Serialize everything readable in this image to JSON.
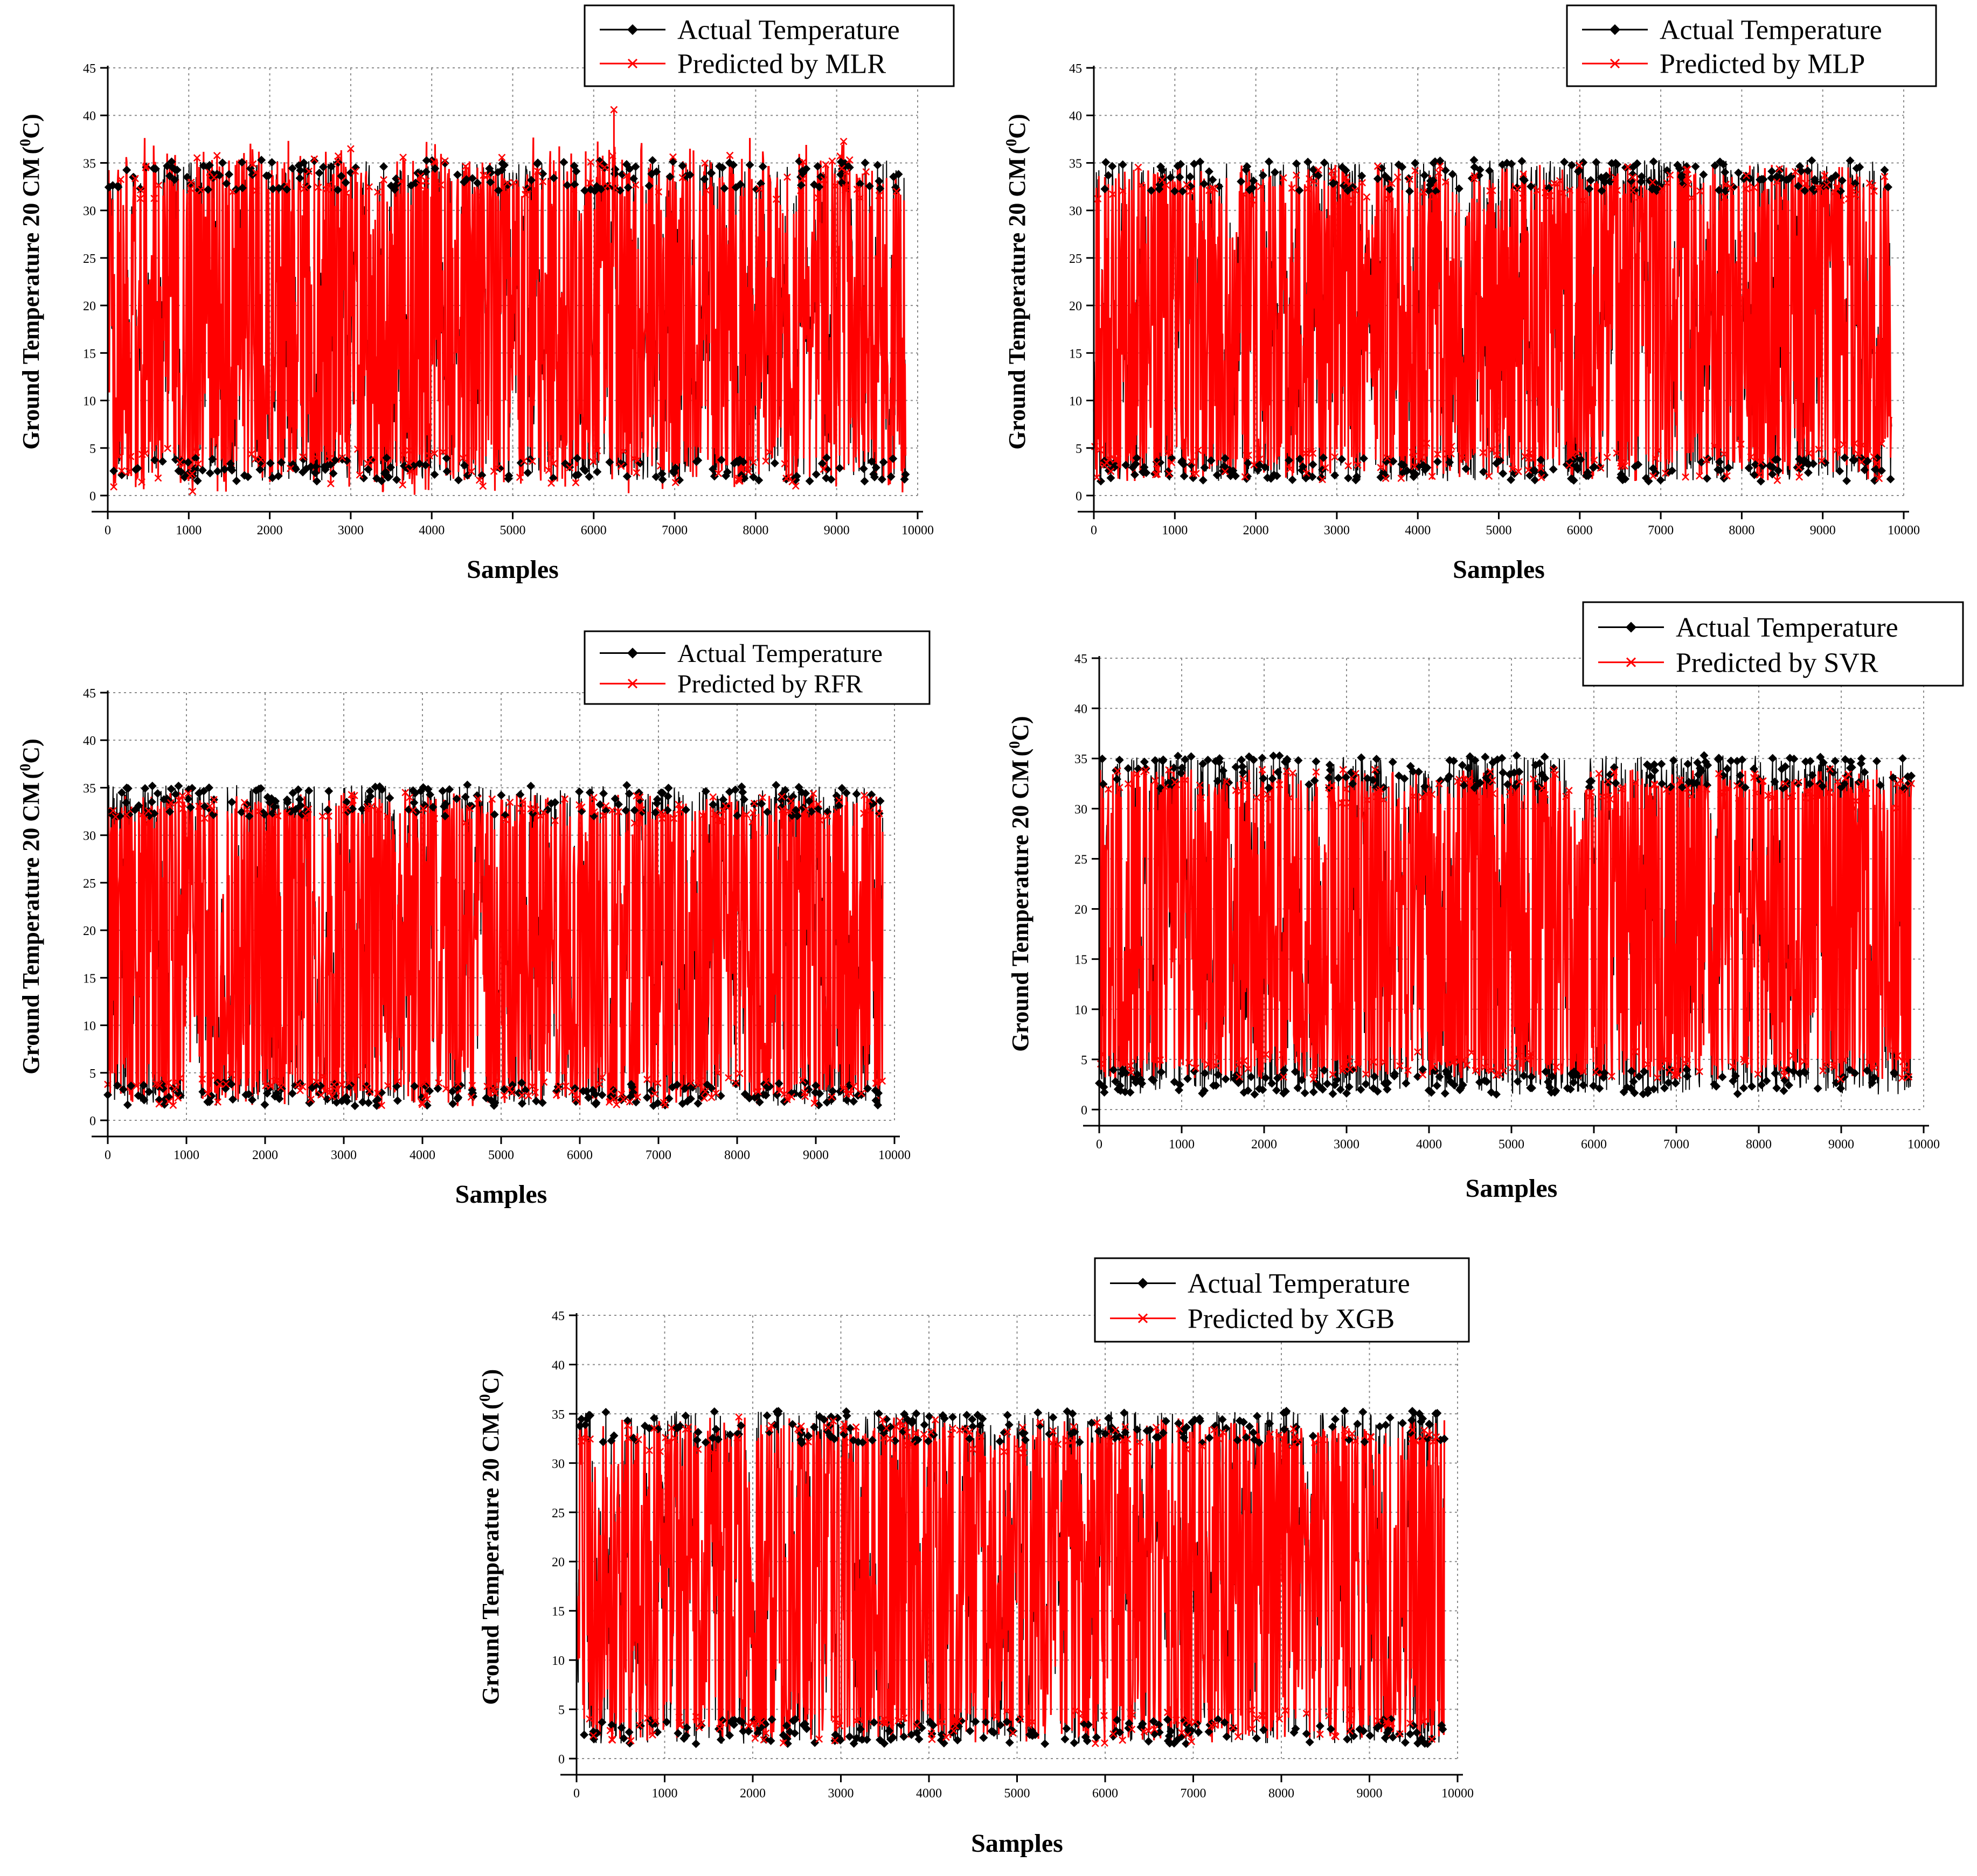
{
  "figure": {
    "common": {
      "xlabel": "Samples",
      "ylabel_main": "Ground Temperature 20 CM",
      "ylabel_paren_open": "(",
      "ylabel_unit_sup": "0",
      "ylabel_unit": "C)",
      "legend_actual": "Actual Temperature",
      "x_ticks": [
        "0",
        "1000",
        "2000",
        "3000",
        "4000",
        "5000",
        "6000",
        "7000",
        "8000",
        "9000",
        "10000"
      ],
      "y_ticks": [
        "0",
        "5",
        "10",
        "15",
        "20",
        "25",
        "30",
        "35",
        "40",
        "45"
      ]
    }
  },
  "chart_data": [
    {
      "type": "line",
      "model": "MLR",
      "legend_predicted": "Predicted by MLR",
      "xlabel": "Samples",
      "ylabel": "Ground Temperature 20 CM (0C)",
      "xlim": [
        0,
        10000
      ],
      "ylim": [
        0,
        45
      ],
      "n_samples": 9850,
      "series": [
        {
          "name": "Actual Temperature",
          "color": "#000000",
          "marker": "diamond",
          "min": 1.5,
          "max": 35.3,
          "typical_low": 4,
          "typical_high": 32
        },
        {
          "name": "Predicted by MLR",
          "color": "#ff0000",
          "marker": "x",
          "min": -0.5,
          "max": 40.6,
          "typical_low": 4,
          "typical_high": 32
        }
      ],
      "annotations": [
        {
          "x": 6250,
          "y": 40.6,
          "series": "Predicted by MLR"
        }
      ]
    },
    {
      "type": "line",
      "model": "MLP",
      "legend_predicted": "Predicted by MLP",
      "xlabel": "Samples",
      "ylabel": "Ground Temperature 20 CM (0C)",
      "xlim": [
        0,
        10000
      ],
      "ylim": [
        0,
        45
      ],
      "n_samples": 9850,
      "series": [
        {
          "name": "Actual Temperature",
          "color": "#000000",
          "marker": "diamond",
          "min": 1.5,
          "max": 35.3,
          "typical_low": 4,
          "typical_high": 32
        },
        {
          "name": "Predicted by MLP",
          "color": "#ff0000",
          "marker": "x",
          "min": 1.5,
          "max": 34.8,
          "typical_low": 4.5,
          "typical_high": 32
        }
      ]
    },
    {
      "type": "line",
      "model": "RFR",
      "legend_predicted": "Predicted by RFR",
      "xlabel": "Samples",
      "ylabel": "Ground Temperature 20 CM (0C)",
      "xlim": [
        0,
        10000
      ],
      "ylim": [
        0,
        45
      ],
      "n_samples": 9850,
      "series": [
        {
          "name": "Actual Temperature",
          "color": "#000000",
          "marker": "diamond",
          "min": 1.5,
          "max": 35.3,
          "typical_low": 4,
          "typical_high": 32
        },
        {
          "name": "Predicted by RFR",
          "color": "#ff0000",
          "marker": "x",
          "min": 1.5,
          "max": 34.5,
          "typical_low": 4,
          "typical_high": 32
        }
      ]
    },
    {
      "type": "line",
      "model": "SVR",
      "legend_predicted": "Predicted by SVR",
      "xlabel": "Samples",
      "ylabel": "Ground Temperature 20 CM (0C)",
      "xlim": [
        0,
        10000
      ],
      "ylim": [
        0,
        45
      ],
      "n_samples": 9850,
      "series": [
        {
          "name": "Actual Temperature",
          "color": "#000000",
          "marker": "diamond",
          "min": 1.5,
          "max": 35.3,
          "typical_low": 4,
          "typical_high": 32
        },
        {
          "name": "Predicted by SVR",
          "color": "#ff0000",
          "marker": "x",
          "min": 3,
          "max": 34,
          "typical_low": 5,
          "typical_high": 31
        }
      ]
    },
    {
      "type": "line",
      "model": "XGB",
      "legend_predicted": "Predicted by XGB",
      "xlabel": "Samples",
      "ylabel": "Ground Temperature 20 CM (0C)",
      "xlim": [
        0,
        10000
      ],
      "ylim": [
        0,
        45
      ],
      "n_samples": 9850,
      "series": [
        {
          "name": "Actual Temperature",
          "color": "#000000",
          "marker": "diamond",
          "min": 1.5,
          "max": 35.3,
          "typical_low": 4,
          "typical_high": 32
        },
        {
          "name": "Predicted by XGB",
          "color": "#ff0000",
          "marker": "x",
          "min": 1.5,
          "max": 34.7,
          "typical_low": 4,
          "typical_high": 32
        }
      ]
    }
  ]
}
